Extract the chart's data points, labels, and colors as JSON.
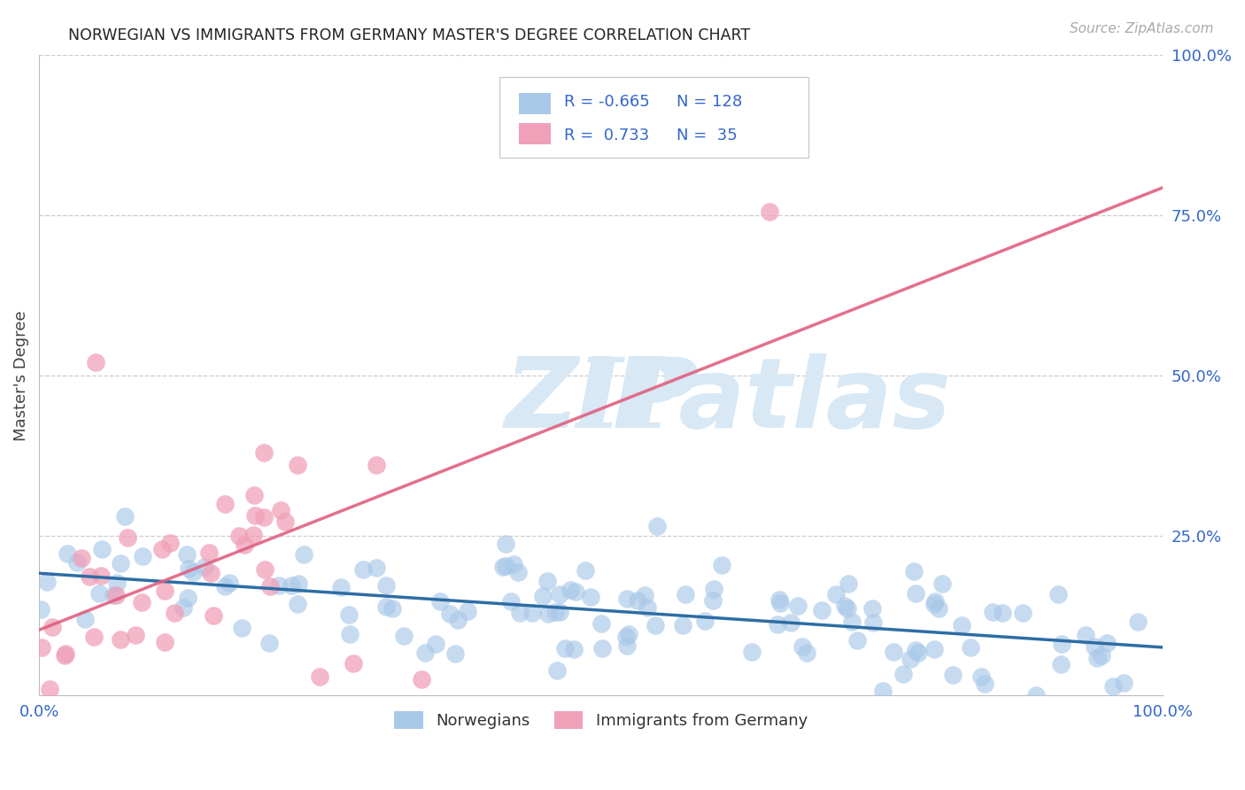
{
  "title": "NORWEGIAN VS IMMIGRANTS FROM GERMANY MASTER'S DEGREE CORRELATION CHART",
  "source": "Source: ZipAtlas.com",
  "ylabel": "Master's Degree",
  "blue_R": "-0.665",
  "blue_N": "128",
  "pink_R": "0.733",
  "pink_N": "35",
  "blue_color": "#A8C8E8",
  "blue_line_color": "#2E6DA4",
  "pink_color": "#F0A0B8",
  "pink_line_color": "#E06080",
  "background_color": "#FFFFFF",
  "grid_color": "#CCCCCC",
  "title_color": "#222222",
  "axis_label_color": "#3366CC",
  "watermark_color": "#D8E8F4"
}
